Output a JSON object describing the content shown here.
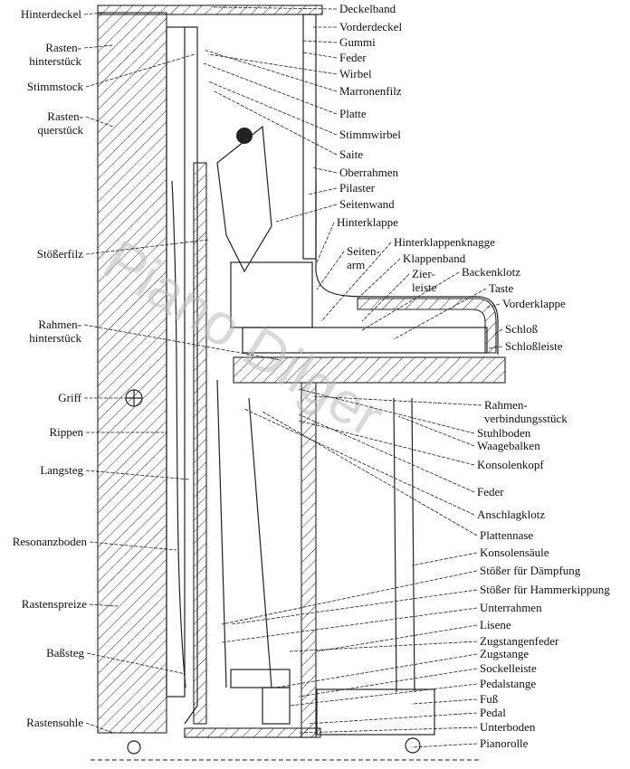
{
  "diagram": {
    "watermark": "Piano Dilger",
    "labels_left": [
      [
        "Hinterdeckel"
      ],
      [
        "Rasten-",
        "hinterstück"
      ],
      [
        "Stimmstock"
      ],
      [
        "Rasten-",
        "querstück"
      ],
      [
        "Stößerfilz"
      ],
      [
        "Rahmen-",
        "hinterstück"
      ],
      [
        "Griff"
      ],
      [
        "Rippen"
      ],
      [
        "Langsteg"
      ],
      [
        "Resonanzboden"
      ],
      [
        "Rastenspreize"
      ],
      [
        "Baßsteg"
      ],
      [
        "Rastensohle"
      ]
    ],
    "labels_right": [
      [
        "Deckelband"
      ],
      [
        "Vorderdeckel"
      ],
      [
        "Gummi"
      ],
      [
        "Feder"
      ],
      [
        "Wirbel"
      ],
      [
        "Marronenfilz"
      ],
      [
        "Platte"
      ],
      [
        "Stimmwirbel"
      ],
      [
        "Saite"
      ],
      [
        "Oberrahmen"
      ],
      [
        "Pilaster"
      ],
      [
        "Seitenwand"
      ],
      [
        "Hinterklappe"
      ],
      [
        "Hinterklappenknagge"
      ],
      [
        "Seiten-",
        "arm"
      ],
      [
        "Klappenband"
      ],
      [
        "Zier-",
        "leiste"
      ],
      [
        "Backenklotz"
      ],
      [
        "Taste"
      ],
      [
        "Vorderklappe"
      ],
      [
        "Schloß"
      ],
      [
        "Schloßleiste"
      ],
      [
        "Rahmen-",
        "verbindungsstück"
      ],
      [
        "Stuhlboden"
      ],
      [
        "Waagebalken"
      ],
      [
        "Konsolenkopf"
      ],
      [
        "Feder"
      ],
      [
        "Anschlagklotz"
      ],
      [
        "Plattennase"
      ],
      [
        "Konsolensäule"
      ],
      [
        "Stößer für Dämpfung"
      ],
      [
        "Stößer für Hammerkippung"
      ],
      [
        "Unterrahmen"
      ],
      [
        "Lisene"
      ],
      [
        "Zugstangenfeder"
      ],
      [
        "Zugstange"
      ],
      [
        "Sockelleiste"
      ],
      [
        "Pedalstange"
      ],
      [
        "Fuß"
      ],
      [
        "Pedal"
      ],
      [
        "Unterboden"
      ],
      [
        "Pianorolle"
      ]
    ]
  }
}
